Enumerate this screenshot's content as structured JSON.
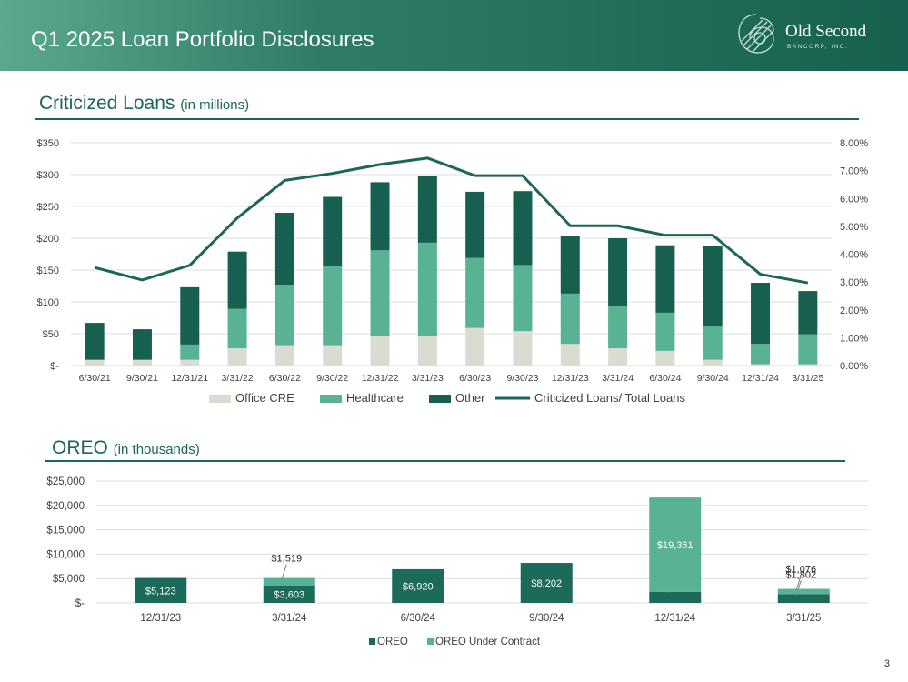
{
  "header": {
    "title": "Q1 2025 Loan Portfolio Disclosures"
  },
  "logo": {
    "name": "Old Second",
    "sub": "BANCORP, INC."
  },
  "page_number": "3",
  "section1": {
    "title": "Criticized Loans",
    "unit": "(in millions)"
  },
  "section2": {
    "title": "OREO",
    "unit": "(in thousands)"
  },
  "colors": {
    "office_cre": "#d9ddd1",
    "healthcare": "#58b293",
    "other": "#17604f",
    "line": "#1c6655",
    "oreo": "#1c6b5a",
    "oreo_contract": "#58b293",
    "brand": "#1c6655"
  },
  "chart_data": [
    {
      "type": "bar",
      "stacked": true,
      "title": "Criticized Loans (in millions)",
      "categories": [
        "6/30/21",
        "9/30/21",
        "12/31/21",
        "3/31/22",
        "6/30/22",
        "9/30/22",
        "12/31/22",
        "3/31/23",
        "6/30/23",
        "9/30/23",
        "12/31/23",
        "3/31/24",
        "6/30/24",
        "9/30/24",
        "12/31/24",
        "3/31/25"
      ],
      "series": [
        {
          "name": "Office CRE",
          "values": [
            9,
            9,
            9,
            27,
            32,
            32,
            46,
            46,
            59,
            54,
            34,
            27,
            23,
            9,
            2,
            2
          ]
        },
        {
          "name": "Healthcare",
          "values": [
            0,
            0,
            24,
            62,
            95,
            124,
            135,
            147,
            110,
            104,
            79,
            66,
            60,
            53,
            32,
            47
          ]
        },
        {
          "name": "Other",
          "values": [
            58,
            48,
            90,
            90,
            113,
            109,
            107,
            105,
            104,
            116,
            91,
            107,
            106,
            126,
            96,
            68
          ]
        }
      ],
      "line_series": {
        "name": "Criticized Loans/ Total Loans",
        "values": [
          3.52,
          3.07,
          3.6,
          5.3,
          6.65,
          6.9,
          7.22,
          7.45,
          6.82,
          6.82,
          5.02,
          5.02,
          4.68,
          4.68,
          3.28,
          2.97
        ],
        "axis": "right"
      },
      "y_ticks": [
        "$350",
        "$300",
        "$250",
        "$200",
        "$150",
        "$100",
        "$50",
        "$-"
      ],
      "y2_ticks": [
        "8.00%",
        "7.00%",
        "6.00%",
        "5.00%",
        "4.00%",
        "3.00%",
        "2.00%",
        "1.00%",
        "0.00%"
      ],
      "ylim": [
        0,
        350
      ],
      "y2lim": [
        0,
        8
      ],
      "legend_position": "bottom",
      "grid": true
    },
    {
      "type": "bar",
      "stacked": true,
      "title": "OREO (in thousands)",
      "categories": [
        "12/31/23",
        "3/31/24",
        "6/30/24",
        "9/30/24",
        "12/31/24",
        "3/31/25"
      ],
      "series": [
        {
          "name": "OREO",
          "values": [
            5123,
            3603,
            6920,
            8202,
            2256,
            1802
          ],
          "labels": [
            "$5,123",
            "$3,603",
            "$6,920",
            "$8,202",
            "$2,256",
            "$1,802"
          ]
        },
        {
          "name": "OREO Under Contract",
          "values": [
            0,
            1519,
            0,
            0,
            19361,
            1076
          ],
          "labels": [
            "",
            "$1,519",
            "",
            "",
            "$19,361",
            "$1,076"
          ]
        }
      ],
      "y_ticks": [
        "$25,000",
        "$20,000",
        "$15,000",
        "$10,000",
        "$5,000",
        "$-"
      ],
      "ylim": [
        0,
        25000
      ],
      "legend_position": "bottom",
      "grid": true
    }
  ]
}
